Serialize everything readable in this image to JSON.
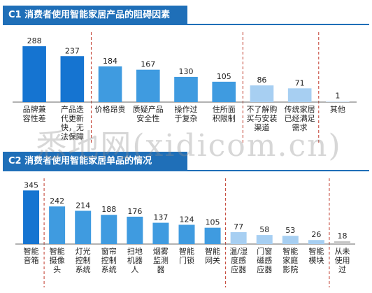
{
  "colors": {
    "header": "#1f6fb8",
    "divider": "#c0392b",
    "axis": "#666666",
    "text": "#222222"
  },
  "watermark": "悉地网(xidicom.cn)",
  "chart_data": [
    {
      "type": "bar",
      "title": "C1 消费者使用智能家居产品的阻碍因素",
      "categories": [
        "品牌兼容性差",
        "产品迭代更新快，无法保障",
        "价格昂贵",
        "质疑产品安全性",
        "操作过于复杂",
        "住所面积限制",
        "不了解购买与安装渠道",
        "传统家居已经满足需求",
        "其他"
      ],
      "label_lines": [
        [
          "品牌兼",
          "容性差"
        ],
        [
          "产品迭",
          "代更新",
          "快，无",
          "法保障"
        ],
        [
          "价格昂贵"
        ],
        [
          "质疑产品",
          "安全性"
        ],
        [
          "操作过",
          "于复杂"
        ],
        [
          "住所面",
          "积限制"
        ],
        [
          "不了解购",
          "买与安装",
          "渠道"
        ],
        [
          "传统家居",
          "已经满足",
          "需求"
        ],
        [
          "其他"
        ]
      ],
      "values": [
        288,
        237,
        184,
        167,
        130,
        105,
        86,
        71,
        1
      ],
      "colors": [
        "#1574d1",
        "#1574d1",
        "#3f9be0",
        "#3f9be0",
        "#3f9be0",
        "#3f9be0",
        "#a7cff2",
        "#a7cff2",
        "#d8e7f5"
      ],
      "groups_after": [
        1,
        5,
        7
      ],
      "ylim": [
        0,
        310
      ]
    },
    {
      "type": "bar",
      "title": "C2 消费者使用智能家居单品的情况",
      "categories": [
        "智能音箱",
        "智能摄像头",
        "灯光控制系统",
        "窗帘控制系统",
        "扫地机器人",
        "烟雾监测器",
        "智能门锁",
        "智能网关",
        "温/湿度感应器",
        "门窗磁感应器",
        "智能家庭影院",
        "智能模块",
        "从未使用过"
      ],
      "label_lines": [
        [
          "智能",
          "音箱"
        ],
        [
          "智能",
          "摄像",
          "头"
        ],
        [
          "灯光",
          "控制",
          "系统"
        ],
        [
          "窗帘",
          "控制",
          "系统"
        ],
        [
          "扫地",
          "机器",
          "人"
        ],
        [
          "烟雾",
          "监测",
          "器"
        ],
        [
          "智能",
          "门锁"
        ],
        [
          "智能",
          "网关"
        ],
        [
          "温/湿",
          "度感",
          "应器"
        ],
        [
          "门窗",
          "磁感",
          "应器"
        ],
        [
          "智能",
          "家庭",
          "影院"
        ],
        [
          "智能",
          "模块"
        ],
        [
          "从未",
          "使用",
          "过"
        ]
      ],
      "values": [
        345,
        242,
        214,
        188,
        176,
        137,
        124,
        105,
        77,
        58,
        53,
        26,
        18
      ],
      "colors": [
        "#1574d1",
        "#3f9be0",
        "#3f9be0",
        "#3f9be0",
        "#3f9be0",
        "#3f9be0",
        "#3f9be0",
        "#3f9be0",
        "#a7cff2",
        "#a7cff2",
        "#a7cff2",
        "#a7cff2",
        "#c7c7c7"
      ],
      "groups_after": [
        0,
        7,
        11
      ],
      "ylim": [
        0,
        360
      ]
    }
  ]
}
